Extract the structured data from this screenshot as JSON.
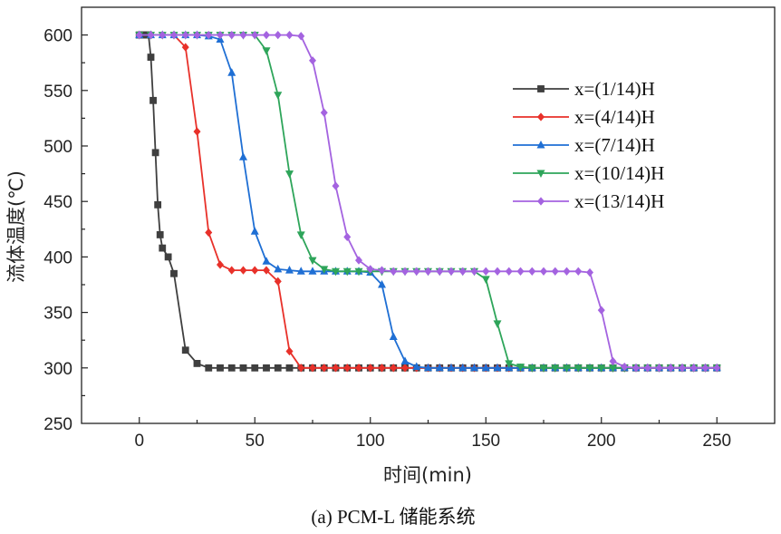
{
  "chart_data": {
    "type": "line",
    "xlabel": "时间(min)",
    "ylabel": "流体温度(℃)",
    "caption": "(a) PCM-L 储能系统",
    "xlim": [
      -25,
      275
    ],
    "ylim": [
      250,
      625
    ],
    "xticks": [
      0,
      50,
      100,
      150,
      200,
      250
    ],
    "yticks": [
      250,
      300,
      350,
      400,
      450,
      500,
      550,
      600
    ],
    "grid": false,
    "legend_position": "top-right",
    "series": [
      {
        "name": "x=(1/14)H",
        "color": "#3f3f3f",
        "marker": "square",
        "points": [
          [
            0,
            600
          ],
          [
            1,
            600
          ],
          [
            2,
            600
          ],
          [
            3,
            600
          ],
          [
            4,
            600
          ],
          [
            5,
            580
          ],
          [
            6,
            541
          ],
          [
            7,
            494
          ],
          [
            8,
            447
          ],
          [
            9,
            420
          ],
          [
            10,
            408
          ],
          [
            12.5,
            400
          ],
          [
            15,
            385
          ],
          [
            20,
            316
          ],
          [
            25,
            304
          ],
          [
            30,
            300
          ],
          [
            35,
            300
          ],
          [
            40,
            300
          ],
          [
            45,
            300
          ],
          [
            50,
            300
          ],
          [
            55,
            300
          ],
          [
            60,
            300
          ],
          [
            65,
            300
          ],
          [
            70,
            300
          ],
          [
            75,
            300
          ],
          [
            80,
            300
          ],
          [
            85,
            300
          ],
          [
            90,
            300
          ],
          [
            95,
            300
          ],
          [
            100,
            300
          ],
          [
            105,
            300
          ],
          [
            110,
            300
          ],
          [
            115,
            300
          ],
          [
            120,
            300
          ],
          [
            125,
            300
          ],
          [
            130,
            300
          ],
          [
            135,
            300
          ],
          [
            140,
            300
          ],
          [
            145,
            300
          ],
          [
            150,
            300
          ],
          [
            155,
            300
          ],
          [
            160,
            300
          ],
          [
            165,
            300
          ],
          [
            170,
            300
          ],
          [
            175,
            300
          ],
          [
            180,
            300
          ],
          [
            185,
            300
          ],
          [
            190,
            300
          ],
          [
            195,
            300
          ],
          [
            200,
            300
          ],
          [
            205,
            300
          ],
          [
            210,
            300
          ],
          [
            215,
            300
          ],
          [
            220,
            300
          ],
          [
            225,
            300
          ],
          [
            230,
            300
          ],
          [
            235,
            300
          ],
          [
            240,
            300
          ],
          [
            245,
            300
          ],
          [
            250,
            300
          ]
        ]
      },
      {
        "name": "x=(4/14)H",
        "color": "#e8312a",
        "marker": "diamond",
        "points": [
          [
            0,
            600
          ],
          [
            5,
            600
          ],
          [
            10,
            600
          ],
          [
            15,
            600
          ],
          [
            20,
            589
          ],
          [
            25,
            513
          ],
          [
            30,
            422
          ],
          [
            35,
            393
          ],
          [
            40,
            388
          ],
          [
            45,
            388
          ],
          [
            50,
            388
          ],
          [
            55,
            388
          ],
          [
            60,
            378
          ],
          [
            65,
            315
          ],
          [
            70,
            300
          ],
          [
            75,
            300
          ],
          [
            80,
            300
          ],
          [
            85,
            300
          ],
          [
            90,
            300
          ],
          [
            95,
            300
          ],
          [
            100,
            300
          ],
          [
            105,
            300
          ],
          [
            110,
            300
          ],
          [
            115,
            300
          ],
          [
            120,
            300
          ],
          [
            125,
            300
          ],
          [
            130,
            300
          ],
          [
            135,
            300
          ],
          [
            140,
            300
          ],
          [
            145,
            300
          ],
          [
            150,
            300
          ],
          [
            155,
            300
          ],
          [
            160,
            300
          ],
          [
            165,
            300
          ],
          [
            170,
            300
          ],
          [
            175,
            300
          ],
          [
            180,
            300
          ],
          [
            185,
            300
          ],
          [
            190,
            300
          ],
          [
            195,
            300
          ],
          [
            200,
            300
          ],
          [
            205,
            300
          ],
          [
            210,
            300
          ],
          [
            215,
            300
          ],
          [
            220,
            300
          ],
          [
            225,
            300
          ],
          [
            230,
            300
          ],
          [
            235,
            300
          ],
          [
            240,
            300
          ],
          [
            245,
            300
          ],
          [
            250,
            300
          ]
        ]
      },
      {
        "name": "x=(7/14)H",
        "color": "#1f6fd4",
        "marker": "triangle-up",
        "points": [
          [
            0,
            600
          ],
          [
            5,
            600
          ],
          [
            10,
            600
          ],
          [
            15,
            600
          ],
          [
            20,
            600
          ],
          [
            25,
            600
          ],
          [
            30,
            599
          ],
          [
            35,
            596
          ],
          [
            40,
            566
          ],
          [
            45,
            490
          ],
          [
            50,
            423
          ],
          [
            55,
            396
          ],
          [
            60,
            389
          ],
          [
            65,
            388
          ],
          [
            70,
            387
          ],
          [
            75,
            387
          ],
          [
            80,
            387
          ],
          [
            85,
            387
          ],
          [
            90,
            387
          ],
          [
            95,
            387
          ],
          [
            100,
            386
          ],
          [
            105,
            375
          ],
          [
            110,
            328
          ],
          [
            115,
            306
          ],
          [
            120,
            301
          ],
          [
            125,
            300
          ],
          [
            130,
            300
          ],
          [
            135,
            300
          ],
          [
            140,
            300
          ],
          [
            145,
            300
          ],
          [
            150,
            300
          ],
          [
            155,
            300
          ],
          [
            160,
            300
          ],
          [
            165,
            300
          ],
          [
            170,
            300
          ],
          [
            175,
            300
          ],
          [
            180,
            300
          ],
          [
            185,
            300
          ],
          [
            190,
            300
          ],
          [
            195,
            300
          ],
          [
            200,
            300
          ],
          [
            205,
            300
          ],
          [
            210,
            300
          ],
          [
            215,
            300
          ],
          [
            220,
            300
          ],
          [
            225,
            300
          ],
          [
            230,
            300
          ],
          [
            235,
            300
          ],
          [
            240,
            300
          ],
          [
            245,
            300
          ],
          [
            250,
            300
          ]
        ]
      },
      {
        "name": "x=(10/14)H",
        "color": "#2ea55a",
        "marker": "triangle-down",
        "points": [
          [
            0,
            600
          ],
          [
            5,
            600
          ],
          [
            10,
            600
          ],
          [
            15,
            600
          ],
          [
            20,
            600
          ],
          [
            25,
            600
          ],
          [
            30,
            600
          ],
          [
            35,
            600
          ],
          [
            40,
            600
          ],
          [
            45,
            600
          ],
          [
            50,
            600
          ],
          [
            55,
            586
          ],
          [
            60,
            546
          ],
          [
            65,
            475
          ],
          [
            70,
            420
          ],
          [
            75,
            397
          ],
          [
            80,
            389
          ],
          [
            85,
            387
          ],
          [
            90,
            387
          ],
          [
            95,
            387
          ],
          [
            100,
            387
          ],
          [
            105,
            387
          ],
          [
            110,
            387
          ],
          [
            115,
            387
          ],
          [
            120,
            387
          ],
          [
            125,
            387
          ],
          [
            130,
            387
          ],
          [
            135,
            387
          ],
          [
            140,
            387
          ],
          [
            145,
            387
          ],
          [
            150,
            380
          ],
          [
            155,
            340
          ],
          [
            160,
            304
          ],
          [
            165,
            301
          ],
          [
            170,
            300
          ],
          [
            175,
            300
          ],
          [
            180,
            300
          ],
          [
            185,
            300
          ],
          [
            190,
            300
          ],
          [
            195,
            300
          ],
          [
            200,
            300
          ],
          [
            205,
            300
          ],
          [
            210,
            300
          ],
          [
            215,
            300
          ],
          [
            220,
            300
          ],
          [
            225,
            300
          ],
          [
            230,
            300
          ],
          [
            235,
            300
          ],
          [
            240,
            300
          ],
          [
            245,
            300
          ],
          [
            250,
            300
          ]
        ]
      },
      {
        "name": "x=(13/14)H",
        "color": "#a463e0",
        "marker": "diamond",
        "points": [
          [
            0,
            600
          ],
          [
            5,
            600
          ],
          [
            10,
            600
          ],
          [
            15,
            600
          ],
          [
            20,
            600
          ],
          [
            25,
            600
          ],
          [
            30,
            600
          ],
          [
            35,
            600
          ],
          [
            40,
            600
          ],
          [
            45,
            600
          ],
          [
            50,
            600
          ],
          [
            55,
            600
          ],
          [
            60,
            600
          ],
          [
            65,
            600
          ],
          [
            70,
            599
          ],
          [
            75,
            577
          ],
          [
            80,
            530
          ],
          [
            85,
            464
          ],
          [
            90,
            418
          ],
          [
            95,
            397
          ],
          [
            100,
            389
          ],
          [
            105,
            388
          ],
          [
            110,
            387
          ],
          [
            115,
            387
          ],
          [
            120,
            387
          ],
          [
            125,
            387
          ],
          [
            130,
            387
          ],
          [
            135,
            387
          ],
          [
            140,
            387
          ],
          [
            145,
            387
          ],
          [
            150,
            387
          ],
          [
            155,
            387
          ],
          [
            160,
            387
          ],
          [
            165,
            387
          ],
          [
            170,
            387
          ],
          [
            175,
            387
          ],
          [
            180,
            387
          ],
          [
            185,
            387
          ],
          [
            190,
            387
          ],
          [
            195,
            386
          ],
          [
            200,
            352
          ],
          [
            205,
            306
          ],
          [
            210,
            301
          ],
          [
            215,
            300
          ],
          [
            220,
            300
          ],
          [
            225,
            300
          ],
          [
            230,
            300
          ],
          [
            235,
            300
          ],
          [
            240,
            300
          ],
          [
            245,
            300
          ],
          [
            250,
            300
          ]
        ]
      }
    ]
  }
}
